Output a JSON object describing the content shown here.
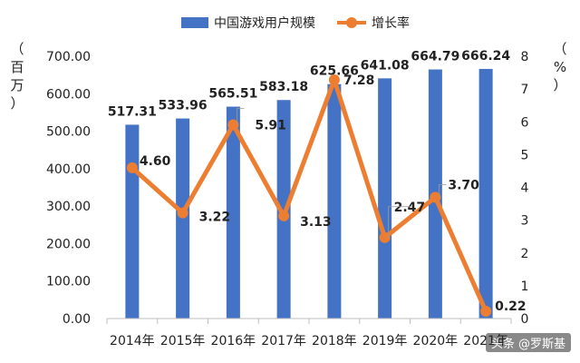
{
  "chart_data": {
    "type": "bar+line",
    "categories": [
      "2014年",
      "2015年",
      "2016年",
      "2017年",
      "2018年",
      "2019年",
      "2020年",
      "2021年"
    ],
    "series": [
      {
        "name": "中国游戏用户规模",
        "kind": "bar",
        "axis": "left",
        "color": "#4472C4",
        "values": [
          517.31,
          533.96,
          565.51,
          583.18,
          625.66,
          641.08,
          664.79,
          666.24
        ],
        "labels": [
          "517.31",
          "533.96",
          "565.51",
          "583.18",
          "625.66",
          "641.08",
          "664.79",
          "666.24"
        ]
      },
      {
        "name": "增长率",
        "kind": "line",
        "axis": "right",
        "color": "#ED7D31",
        "values": [
          4.6,
          3.22,
          5.91,
          3.13,
          7.28,
          2.47,
          3.7,
          0.22
        ],
        "labels": [
          "4.60",
          "3.22",
          "5.91",
          "3.13",
          "7.28",
          "2.47",
          "3.70",
          "0.22"
        ]
      }
    ],
    "left_axis": {
      "range": [
        0,
        700
      ],
      "ticks": [
        "0.00",
        "100.00",
        "200.00",
        "300.00",
        "400.00",
        "500.00",
        "600.00",
        "700.00"
      ],
      "unit_chars": [
        "（",
        "百",
        "万",
        "）"
      ]
    },
    "right_axis": {
      "range": [
        0,
        8
      ],
      "ticks": [
        "0",
        "1",
        "2",
        "3",
        "4",
        "5",
        "6",
        "7",
        "8"
      ],
      "unit_chars": [
        "（",
        "%",
        "）"
      ]
    },
    "legend_position": "top-center",
    "grid": false
  },
  "watermark": "头条 @罗斯基"
}
